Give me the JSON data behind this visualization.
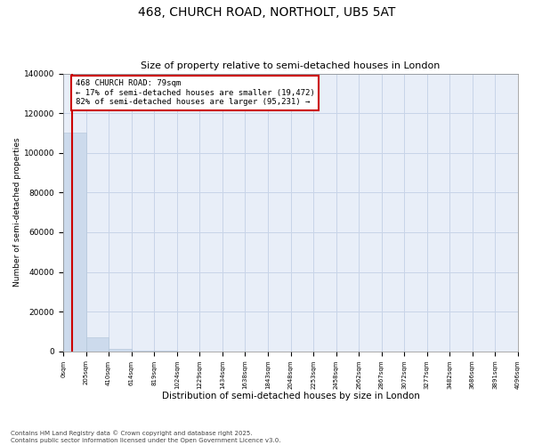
{
  "title1": "468, CHURCH ROAD, NORTHOLT, UB5 5AT",
  "title2": "Size of property relative to semi-detached houses in London",
  "xlabel": "Distribution of semi-detached houses by size in London",
  "ylabel": "Number of semi-detached properties",
  "property_size": 79,
  "annotation_line1": "468 CHURCH ROAD: 79sqm",
  "annotation_line2": "← 17% of semi-detached houses are smaller (19,472)",
  "annotation_line3": "82% of semi-detached houses are larger (95,231) →",
  "bar_color": "#ccdaec",
  "bar_edge_color": "#b0c4d8",
  "vline_color": "#cc0000",
  "annotation_box_color": "#cc0000",
  "grid_color": "#c8d4e8",
  "bg_color": "#e8eef8",
  "footnote": "Contains HM Land Registry data © Crown copyright and database right 2025.\nContains public sector information licensed under the Open Government Licence v3.0.",
  "ylim": [
    0,
    140000
  ],
  "bin_edges": [
    0,
    205,
    410,
    614,
    819,
    1024,
    1229,
    1434,
    1638,
    1843,
    2048,
    2253,
    2458,
    2662,
    2867,
    3072,
    3277,
    3482,
    3686,
    3891,
    4096
  ],
  "bar_heights": [
    110000,
    7200,
    1100,
    380,
    180,
    110,
    70,
    50,
    35,
    25,
    20,
    16,
    13,
    11,
    9,
    7,
    6,
    5,
    4,
    3
  ],
  "yticks": [
    0,
    20000,
    40000,
    60000,
    80000,
    100000,
    120000,
    140000
  ]
}
